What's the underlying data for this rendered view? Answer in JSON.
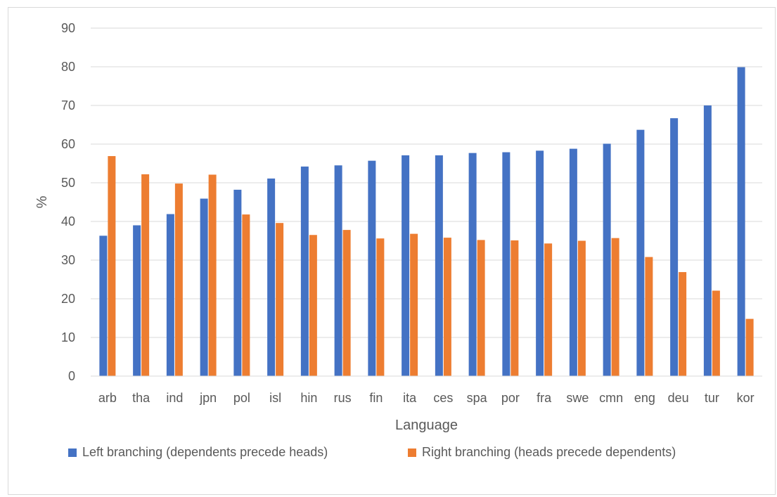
{
  "chart_data": {
    "type": "bar",
    "title": "",
    "xlabel": "Language",
    "ylabel": "%",
    "ylim": [
      0,
      90
    ],
    "yticks": [
      0,
      10,
      20,
      30,
      40,
      50,
      60,
      70,
      80,
      90
    ],
    "grid": true,
    "legend_position": "bottom",
    "categories": [
      "arb",
      "tha",
      "ind",
      "jpn",
      "pol",
      "isl",
      "hin",
      "rus",
      "fin",
      "ita",
      "ces",
      "spa",
      "por",
      "fra",
      "swe",
      "cmn",
      "eng",
      "deu",
      "tur",
      "kor"
    ],
    "series": [
      {
        "name": "Left branching (dependents precede heads)",
        "color": "#4472c4",
        "values": [
          36.3,
          39.0,
          41.9,
          45.9,
          48.2,
          51.1,
          54.2,
          54.5,
          55.7,
          57.1,
          57.1,
          57.7,
          57.9,
          58.3,
          58.8,
          60.1,
          63.7,
          66.7,
          70.0,
          79.9
        ]
      },
      {
        "name": "Right branching (heads precede dependents)",
        "color": "#ed7d31",
        "values": [
          56.9,
          52.2,
          49.8,
          52.1,
          41.8,
          39.6,
          36.5,
          37.8,
          35.6,
          36.8,
          35.8,
          35.2,
          35.1,
          34.3,
          35.0,
          35.7,
          30.8,
          26.9,
          22.1,
          14.8
        ]
      }
    ]
  }
}
